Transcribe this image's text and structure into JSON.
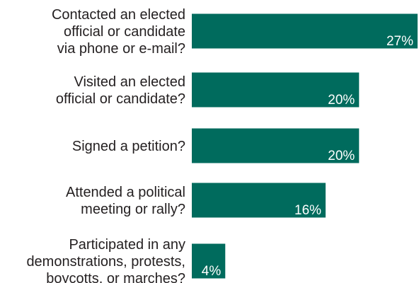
{
  "chart_data": {
    "type": "bar",
    "orientation": "horizontal",
    "categories": [
      [
        "Contacted an elected",
        "official or candidate",
        "via phone or e-mail?"
      ],
      [
        "Visited an elected",
        "official or candidate?"
      ],
      [
        "Signed a petition?"
      ],
      [
        "Attended a political",
        "meeting or rally?"
      ],
      [
        "Participated in any",
        "demonstrations, protests,",
        "boycotts, or marches?"
      ]
    ],
    "values": [
      27,
      20,
      20,
      16,
      4
    ],
    "value_labels": [
      "27%",
      "20%",
      "20%",
      "16%",
      "4%"
    ],
    "xlim": [
      0,
      27
    ],
    "bar_color": "#006b5d",
    "label_color": "#231f20",
    "value_label_color": "#ffffff",
    "grid": false,
    "legend": "none",
    "title": "",
    "xlabel": "",
    "ylabel": ""
  }
}
